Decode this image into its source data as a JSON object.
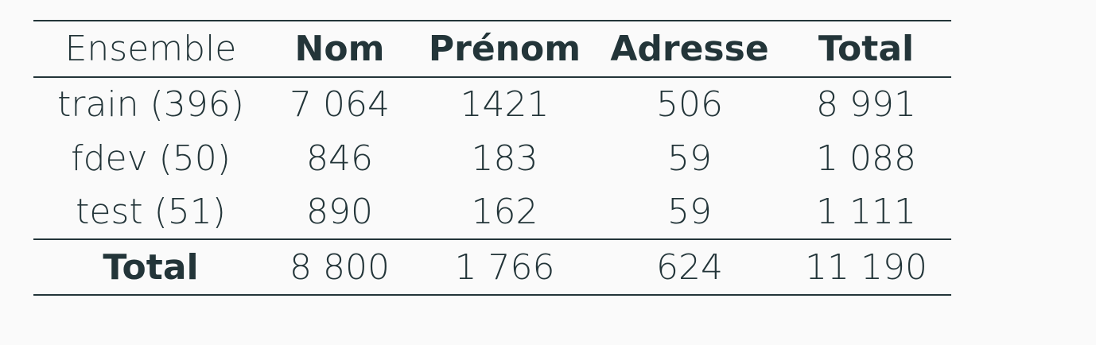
{
  "table": {
    "headers": [
      "Ensemble",
      "Nom",
      "Prénom",
      "Adresse",
      "Total"
    ],
    "rows": [
      [
        "train (396)",
        "7 064",
        "1421",
        "506",
        "8 991"
      ],
      [
        "fdev (50)",
        "846",
        "183",
        "59",
        "1 088"
      ],
      [
        "test (51)",
        "890",
        "162",
        "59",
        "1 111"
      ]
    ],
    "total": [
      "Total",
      "8 800",
      "1 766",
      "624",
      "11 190"
    ]
  }
}
